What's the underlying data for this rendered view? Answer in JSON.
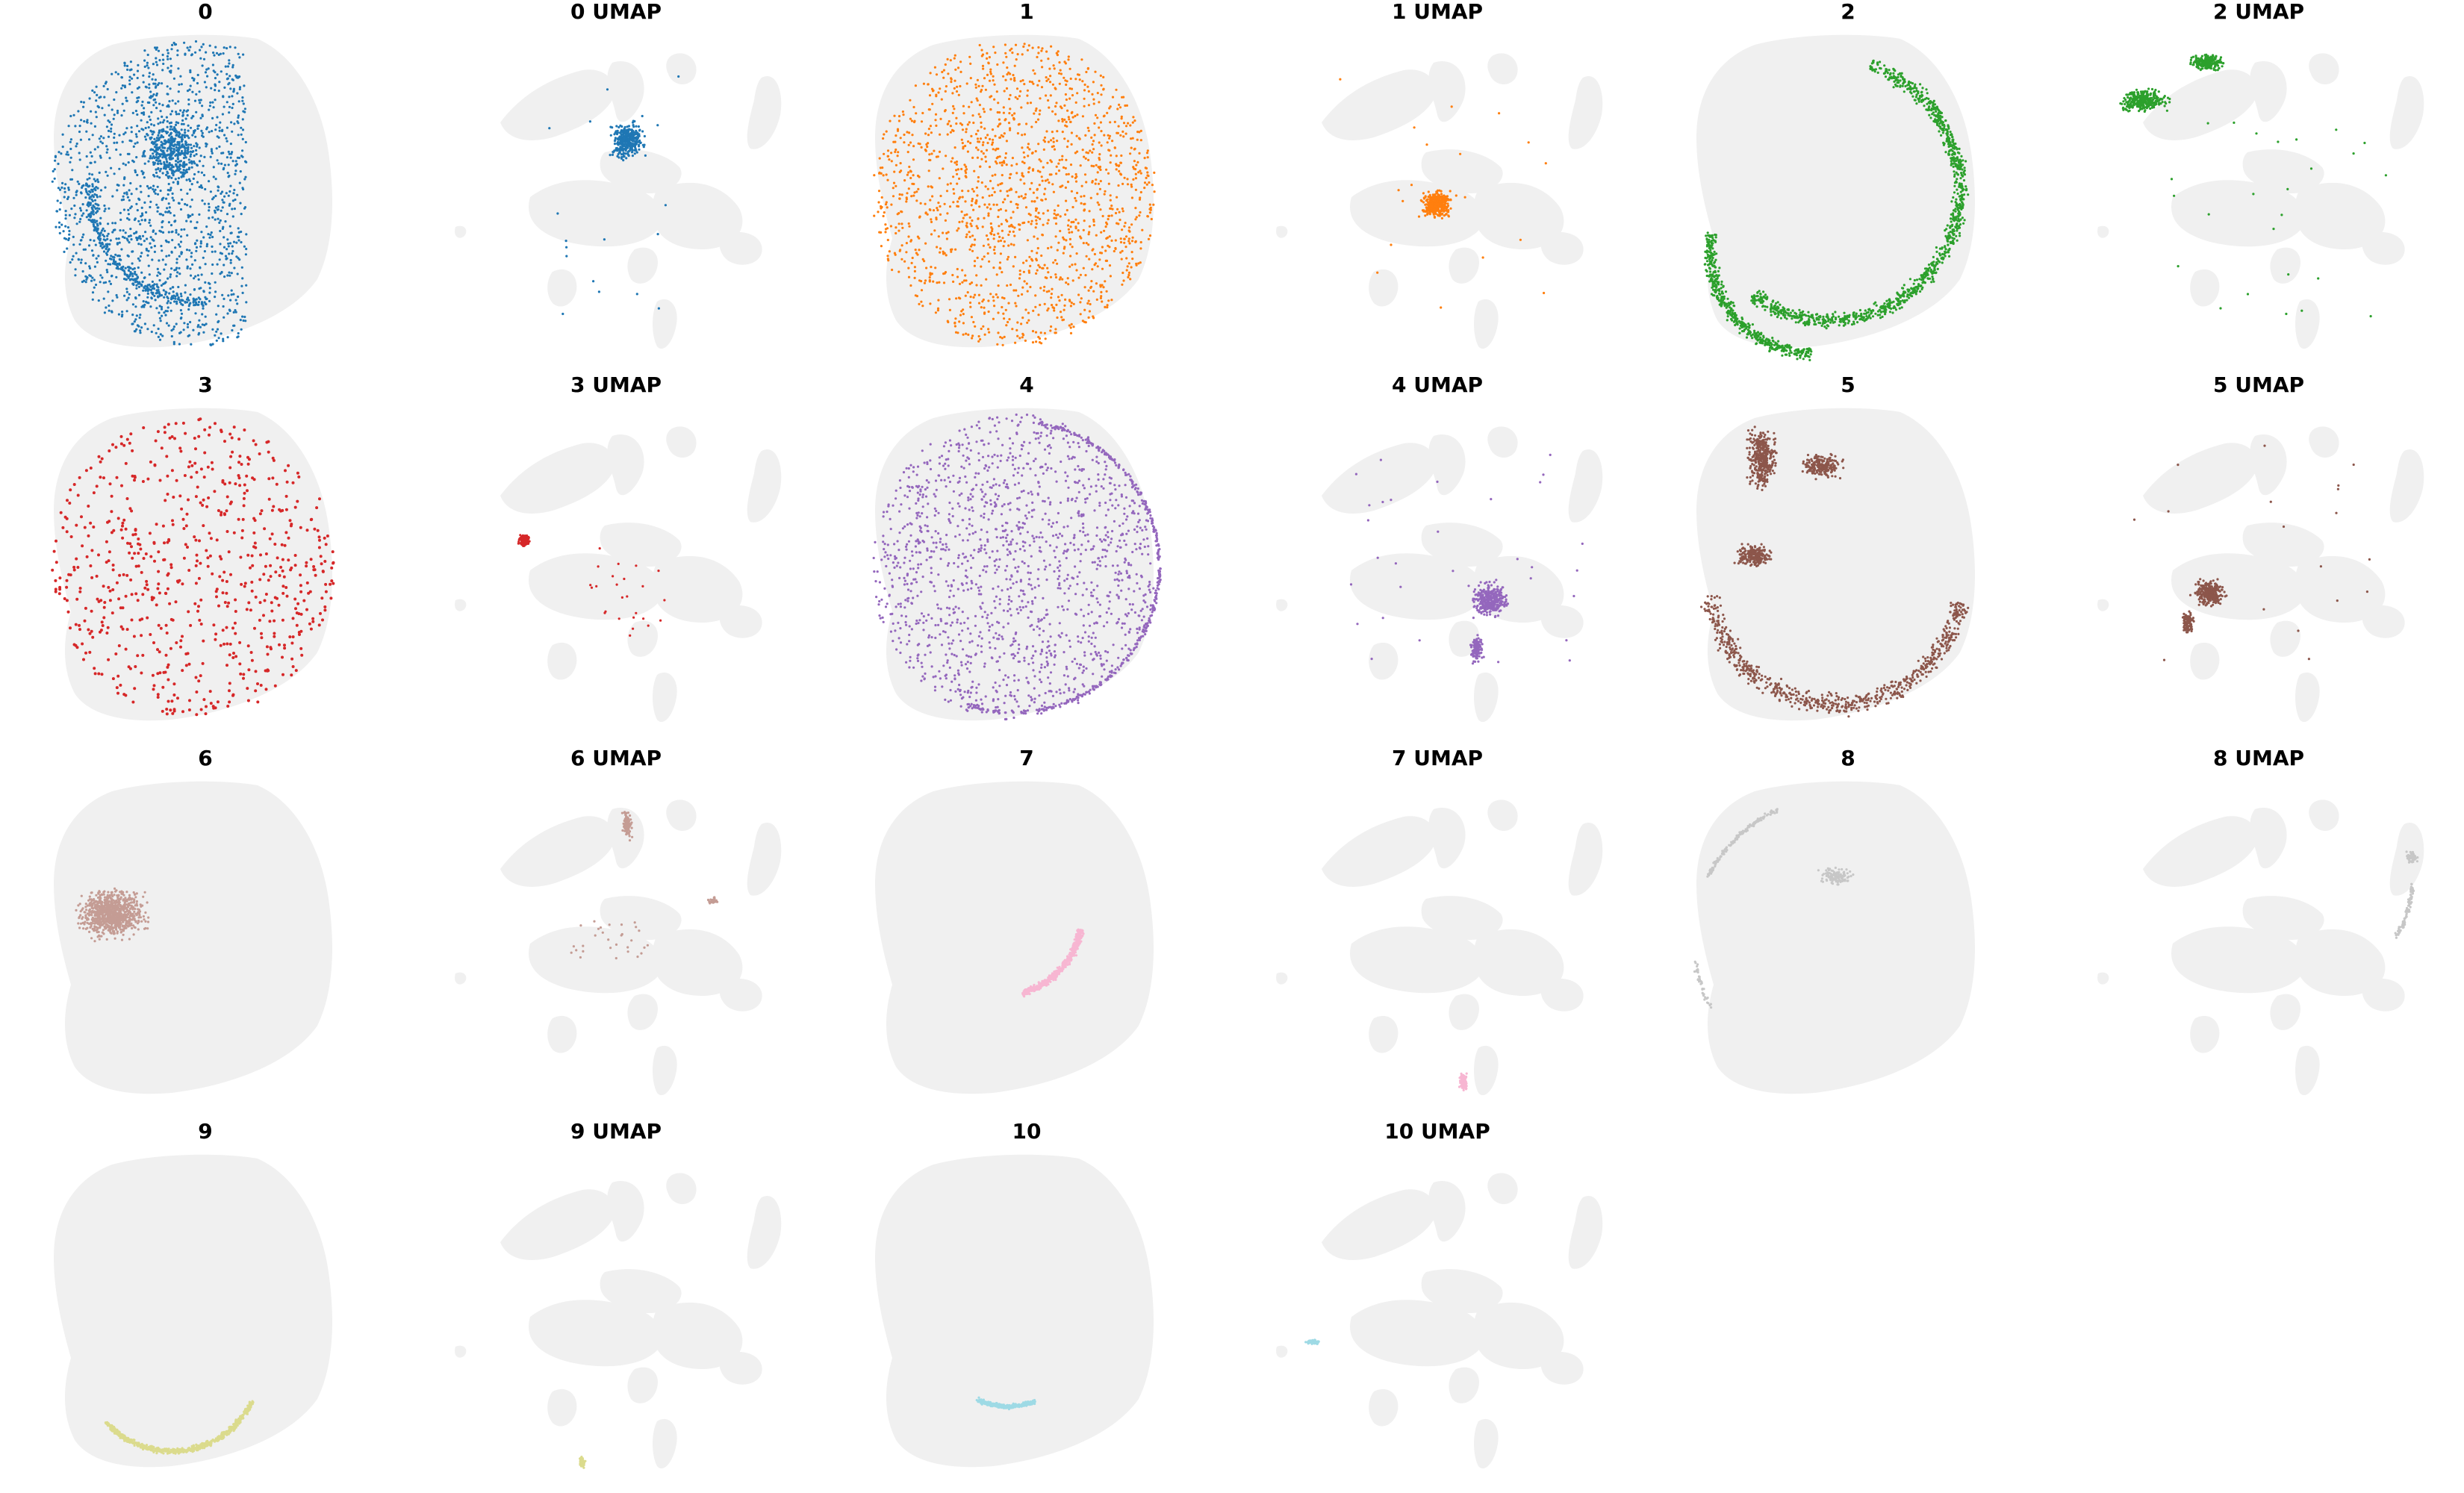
{
  "chart_data": [
    {
      "type": "scatter",
      "title": "0",
      "cluster": "0",
      "view": "spatial",
      "color": "#1f77b4"
    },
    {
      "type": "scatter",
      "title": "0 UMAP",
      "cluster": "0",
      "view": "umap",
      "color": "#1f77b4"
    },
    {
      "type": "scatter",
      "title": "1",
      "cluster": "1",
      "view": "spatial",
      "color": "#ff7f0e"
    },
    {
      "type": "scatter",
      "title": "1 UMAP",
      "cluster": "1",
      "view": "umap",
      "color": "#ff7f0e"
    },
    {
      "type": "scatter",
      "title": "2",
      "cluster": "2",
      "view": "spatial",
      "color": "#2ca02c"
    },
    {
      "type": "scatter",
      "title": "2 UMAP",
      "cluster": "2",
      "view": "umap",
      "color": "#2ca02c"
    },
    {
      "type": "scatter",
      "title": "3",
      "cluster": "3",
      "view": "spatial",
      "color": "#d62728"
    },
    {
      "type": "scatter",
      "title": "3 UMAP",
      "cluster": "3",
      "view": "umap",
      "color": "#d62728"
    },
    {
      "type": "scatter",
      "title": "4",
      "cluster": "4",
      "view": "spatial",
      "color": "#9467bd"
    },
    {
      "type": "scatter",
      "title": "4 UMAP",
      "cluster": "4",
      "view": "umap",
      "color": "#9467bd"
    },
    {
      "type": "scatter",
      "title": "5",
      "cluster": "5",
      "view": "spatial",
      "color": "#8c564b"
    },
    {
      "type": "scatter",
      "title": "5 UMAP",
      "cluster": "5",
      "view": "umap",
      "color": "#8c564b"
    },
    {
      "type": "scatter",
      "title": "6",
      "cluster": "6",
      "view": "spatial",
      "color": "#c49c94"
    },
    {
      "type": "scatter",
      "title": "6 UMAP",
      "cluster": "6",
      "view": "umap",
      "color": "#c49c94"
    },
    {
      "type": "scatter",
      "title": "7",
      "cluster": "7",
      "view": "spatial",
      "color": "#f7b6d2"
    },
    {
      "type": "scatter",
      "title": "7 UMAP",
      "cluster": "7",
      "view": "umap",
      "color": "#f7b6d2"
    },
    {
      "type": "scatter",
      "title": "8",
      "cluster": "8",
      "view": "spatial",
      "color": "#c7c7c7"
    },
    {
      "type": "scatter",
      "title": "8 UMAP",
      "cluster": "8",
      "view": "umap",
      "color": "#c7c7c7"
    },
    {
      "type": "scatter",
      "title": "9",
      "cluster": "9",
      "view": "spatial",
      "color": "#dbdb8d"
    },
    {
      "type": "scatter",
      "title": "9 UMAP",
      "cluster": "9",
      "view": "umap",
      "color": "#dbdb8d"
    },
    {
      "type": "scatter",
      "title": "10",
      "cluster": "10",
      "view": "spatial",
      "color": "#9edae5"
    },
    {
      "type": "scatter",
      "title": "10 UMAP",
      "cluster": "10",
      "view": "umap",
      "color": "#9edae5"
    }
  ],
  "background_color": "#f0f0f0",
  "axes_visible": false,
  "grid": false
}
